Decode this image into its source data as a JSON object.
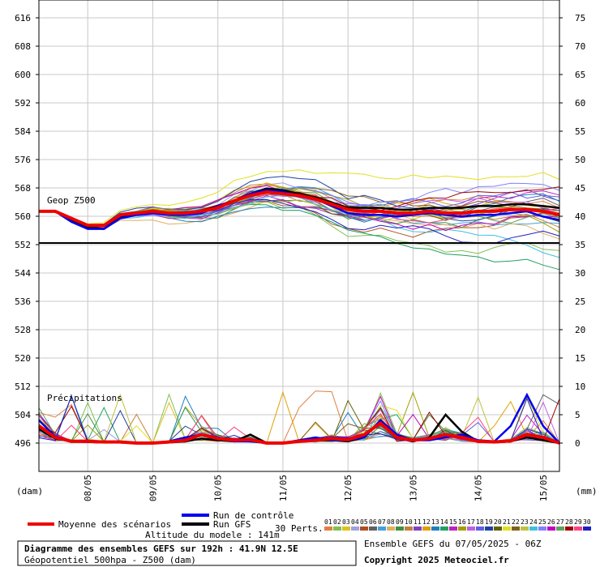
{
  "chart_data": {
    "type": "line",
    "title": "Diagramme des ensembles GEFS sur 192h : 41.9N 12.5E",
    "subtitle": "Géopotentiel 500hpa - Z500 (dam)",
    "run_info": "Ensemble GEFS du 07/05/2025 - 06Z",
    "copyright": "Copyright 2025 Meteociel.fr",
    "altitude_text": "Altitude du modele : 141m",
    "left_unit": "(dam)",
    "right_unit": "(mm)",
    "geop_label": "Geop Z500",
    "precip_label": "Précipitations",
    "geop_ylim": [
      552,
      616
    ],
    "geop_ticks": [
      "616",
      "608",
      "600",
      "592",
      "584",
      "576",
      "568",
      "560",
      "552"
    ],
    "lower_left_ticks": [
      "544",
      "536",
      "528",
      "520",
      "512",
      "504",
      "496"
    ],
    "right_ticks": [
      "75",
      "70",
      "65",
      "60",
      "55",
      "50",
      "45",
      "40",
      "35",
      "30",
      "25",
      "20",
      "15",
      "10",
      "5",
      "0"
    ],
    "precip_ylim": [
      0,
      35
    ],
    "x_labels": [
      "08/05",
      "09/05",
      "10/05",
      "11/05",
      "12/05",
      "13/05",
      "14/05",
      "15/05"
    ],
    "x_hours": [
      0,
      6,
      12,
      18,
      24,
      30,
      36,
      42,
      48,
      54,
      60,
      66,
      72,
      78,
      84,
      90,
      96,
      102,
      108,
      114,
      120,
      126,
      132,
      138,
      144,
      150,
      156,
      162,
      168,
      174,
      180,
      186,
      192
    ],
    "mean": {
      "name": "Moyenne des scénarios",
      "color": "#ee0000",
      "z500": [
        561,
        561,
        559,
        557,
        557,
        560,
        560.5,
        561,
        560.5,
        560.5,
        561,
        562,
        564,
        565.5,
        566.5,
        566,
        565.5,
        564.5,
        563,
        561.5,
        561,
        561,
        560.5,
        560.5,
        561,
        560.5,
        560.5,
        561,
        561,
        561.5,
        561.5,
        561,
        560
      ],
      "precip": [
        3,
        1,
        0.3,
        0.3,
        0.2,
        0.2,
        0,
        0,
        0.2,
        0.5,
        1.5,
        0.8,
        0.5,
        0.6,
        0,
        0,
        0.3,
        0.5,
        0.8,
        0.6,
        1.5,
        3.5,
        1,
        0.5,
        0.8,
        1.5,
        1,
        0.3,
        0.2,
        0.4,
        1.5,
        1,
        0
      ]
    },
    "control": {
      "name": "Run de contrôle",
      "color": "#0000ee",
      "z500": [
        561,
        561,
        558,
        556,
        556,
        559,
        560,
        560.5,
        560,
        560,
        560.5,
        562.5,
        564,
        566,
        567,
        566.5,
        565.5,
        564.5,
        562.5,
        560.5,
        560,
        560,
        559.5,
        560,
        560.5,
        560,
        559.5,
        560,
        560,
        560.5,
        561,
        559.5,
        558.5
      ],
      "precip": [
        4,
        1.2,
        0.3,
        0.2,
        0.2,
        0.1,
        0,
        0,
        0.3,
        1,
        1.5,
        1,
        0.3,
        0.3,
        0,
        0,
        0.5,
        1,
        0.5,
        0.5,
        1,
        4,
        1.5,
        0.5,
        0.5,
        1,
        1.5,
        0.5,
        0.3,
        3,
        8.5,
        3,
        0
      ]
    },
    "gfs": {
      "name": "Run GFS",
      "color": "#000000",
      "z500": [
        561,
        561,
        558.5,
        556.5,
        556,
        559.5,
        560.5,
        561,
        560.5,
        560.5,
        561,
        562.5,
        564,
        566,
        567.5,
        567,
        566,
        565,
        563.5,
        562,
        562,
        562,
        561.5,
        561.5,
        562,
        562,
        562,
        562.5,
        562.5,
        563,
        563,
        562.5,
        562
      ],
      "precip": [
        2.5,
        0.8,
        0.3,
        0.2,
        0.1,
        0.1,
        0,
        0,
        0.1,
        0.3,
        0.8,
        0.5,
        0.3,
        1.5,
        0,
        0,
        0.3,
        0.5,
        0.5,
        0.3,
        1,
        4,
        1,
        0.3,
        1,
        5,
        2,
        0.3,
        0.1,
        0.3,
        1,
        0.5,
        0
      ]
    },
    "perturbations_label": "30 Perts.",
    "perturbation_ids": [
      "01",
      "02",
      "03",
      "04",
      "05",
      "06",
      "07",
      "08",
      "09",
      "10",
      "11",
      "12",
      "13",
      "14",
      "15",
      "16",
      "17",
      "18",
      "19",
      "20",
      "21",
      "22",
      "23",
      "24",
      "25",
      "26",
      "27",
      "28",
      "29",
      "30"
    ],
    "perturbation_colors": [
      "#e08040",
      "#80c050",
      "#e0c020",
      "#a0a0e0",
      "#b05020",
      "#606060",
      "#40a0e0",
      "#e0b060",
      "#409040",
      "#c08040",
      "#8040c0",
      "#e0a000",
      "#2080c0",
      "#20a060",
      "#c020c0",
      "#a0a000",
      "#c060e0",
      "#6060e0",
      "#2040a0",
      "#606000",
      "#e0e020",
      "#806020",
      "#c0c040",
      "#40c0e0",
      "#8080ff",
      "#c000c0",
      "#60a060",
      "#a00000",
      "#ff4080",
      "#2020c0"
    ]
  },
  "legend": {
    "mean_label": "Moyenne des scénarios",
    "control_label": "Run de contrôle",
    "gfs_label": "Run GFS"
  }
}
